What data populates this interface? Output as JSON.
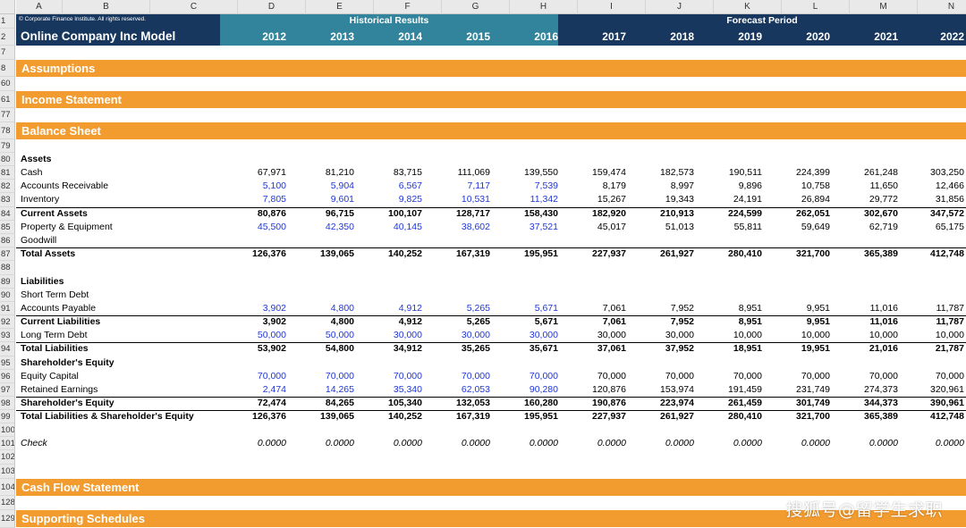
{
  "columns": [
    "A",
    "B",
    "C",
    "D",
    "E",
    "F",
    "G",
    "H",
    "I",
    "J",
    "K",
    "L",
    "M",
    "N"
  ],
  "header": {
    "copyright": "© Corporate Finance Institute. All rights reserved.",
    "model_title": "Online Company Inc Model",
    "historical_label": "Historical Results",
    "forecast_label": "Forecast Period",
    "years": [
      "2012",
      "2013",
      "2014",
      "2015",
      "2016",
      "2017",
      "2018",
      "2019",
      "2020",
      "2021",
      "2022"
    ]
  },
  "row_numbers": [
    "1",
    "2",
    "7",
    "8",
    "60",
    "61",
    "77",
    "78",
    "79",
    "80",
    "81",
    "82",
    "83",
    "84",
    "85",
    "86",
    "87",
    "88",
    "89",
    "90",
    "91",
    "92",
    "93",
    "94",
    "95",
    "96",
    "97",
    "98",
    "99",
    "100",
    "101",
    "102",
    "103",
    "104",
    "128",
    "129"
  ],
  "sections": {
    "assumptions": "Assumptions",
    "income_statement": "Income Statement",
    "balance_sheet": "Balance Sheet",
    "cash_flow": "Cash Flow Statement",
    "supporting": "Supporting Schedules"
  },
  "colors": {
    "navy": "#17375e",
    "teal": "#31849b",
    "orange": "#f29b2f",
    "input_blue": "#1f37d6"
  },
  "balance_rows": [
    {
      "label": "Assets",
      "bold": true,
      "values": []
    },
    {
      "label": "Cash",
      "values": [
        "67,971",
        "81,210",
        "83,715",
        "111,069",
        "139,550",
        "159,474",
        "182,573",
        "190,511",
        "224,399",
        "261,248",
        "303,250"
      ]
    },
    {
      "label": "Accounts Receivable",
      "hist_blue": true,
      "values": [
        "5,100",
        "5,904",
        "6,567",
        "7,117",
        "7,539",
        "8,179",
        "8,997",
        "9,896",
        "10,758",
        "11,650",
        "12,466"
      ]
    },
    {
      "label": "Inventory",
      "hist_blue": true,
      "values": [
        "7,805",
        "9,601",
        "9,825",
        "10,531",
        "11,342",
        "15,267",
        "19,343",
        "24,191",
        "26,894",
        "29,772",
        "31,856"
      ]
    },
    {
      "label": "Current Assets",
      "bold": true,
      "line": true,
      "values": [
        "80,876",
        "96,715",
        "100,107",
        "128,717",
        "158,430",
        "182,920",
        "210,913",
        "224,599",
        "262,051",
        "302,670",
        "347,572"
      ]
    },
    {
      "label": "Property & Equipment",
      "hist_blue": true,
      "values": [
        "45,500",
        "42,350",
        "40,145",
        "38,602",
        "37,521",
        "45,017",
        "51,013",
        "55,811",
        "59,649",
        "62,719",
        "65,175"
      ]
    },
    {
      "label": "Goodwill",
      "values": []
    },
    {
      "label": "Total Assets",
      "bold": true,
      "line": true,
      "values": [
        "126,376",
        "139,065",
        "140,252",
        "167,319",
        "195,951",
        "227,937",
        "261,927",
        "280,410",
        "321,700",
        "365,389",
        "412,748"
      ]
    },
    {
      "label": "",
      "values": []
    },
    {
      "label": "Liabilities",
      "bold": true,
      "values": []
    },
    {
      "label": "Short Term Debt",
      "values": []
    },
    {
      "label": "Accounts Payable",
      "hist_blue": true,
      "values": [
        "3,902",
        "4,800",
        "4,912",
        "5,265",
        "5,671",
        "7,061",
        "7,952",
        "8,951",
        "9,951",
        "11,016",
        "11,787"
      ]
    },
    {
      "label": "Current Liabilities",
      "bold": true,
      "line": true,
      "values": [
        "3,902",
        "4,800",
        "4,912",
        "5,265",
        "5,671",
        "7,061",
        "7,952",
        "8,951",
        "9,951",
        "11,016",
        "11,787"
      ]
    },
    {
      "label": "Long Term Debt",
      "hist_blue": true,
      "values": [
        "50,000",
        "50,000",
        "30,000",
        "30,000",
        "30,000",
        "30,000",
        "30,000",
        "10,000",
        "10,000",
        "10,000",
        "10,000"
      ]
    },
    {
      "label": "Total Liabilities",
      "bold": true,
      "line": true,
      "values": [
        "53,902",
        "54,800",
        "34,912",
        "35,265",
        "35,671",
        "37,061",
        "37,952",
        "18,951",
        "19,951",
        "21,016",
        "21,787"
      ]
    },
    {
      "label": "Shareholder's Equity",
      "bold": true,
      "values": []
    },
    {
      "label": "Equity Capital",
      "hist_blue": true,
      "values": [
        "70,000",
        "70,000",
        "70,000",
        "70,000",
        "70,000",
        "70,000",
        "70,000",
        "70,000",
        "70,000",
        "70,000",
        "70,000"
      ]
    },
    {
      "label": "Retained Earnings",
      "hist_blue": true,
      "values": [
        "2,474",
        "14,265",
        "35,340",
        "62,053",
        "90,280",
        "120,876",
        "153,974",
        "191,459",
        "231,749",
        "274,373",
        "320,961"
      ]
    },
    {
      "label": "Shareholder's Equity",
      "bold": true,
      "line": true,
      "values": [
        "72,474",
        "84,265",
        "105,340",
        "132,053",
        "160,280",
        "190,876",
        "223,974",
        "261,459",
        "301,749",
        "344,373",
        "390,961"
      ]
    },
    {
      "label": "Total Liabilities & Shareholder's Equity",
      "bold": true,
      "line": true,
      "values": [
        "126,376",
        "139,065",
        "140,252",
        "167,319",
        "195,951",
        "227,937",
        "261,927",
        "280,410",
        "321,700",
        "365,389",
        "412,748"
      ]
    },
    {
      "label": "",
      "values": []
    },
    {
      "label": "Check",
      "italic": true,
      "values": [
        "0.0000",
        "0.0000",
        "0.0000",
        "0.0000",
        "0.0000",
        "0.0000",
        "0.0000",
        "0.0000",
        "0.0000",
        "0.0000",
        "0.0000"
      ]
    }
  ],
  "watermark": "搜狐号@留学生求职"
}
